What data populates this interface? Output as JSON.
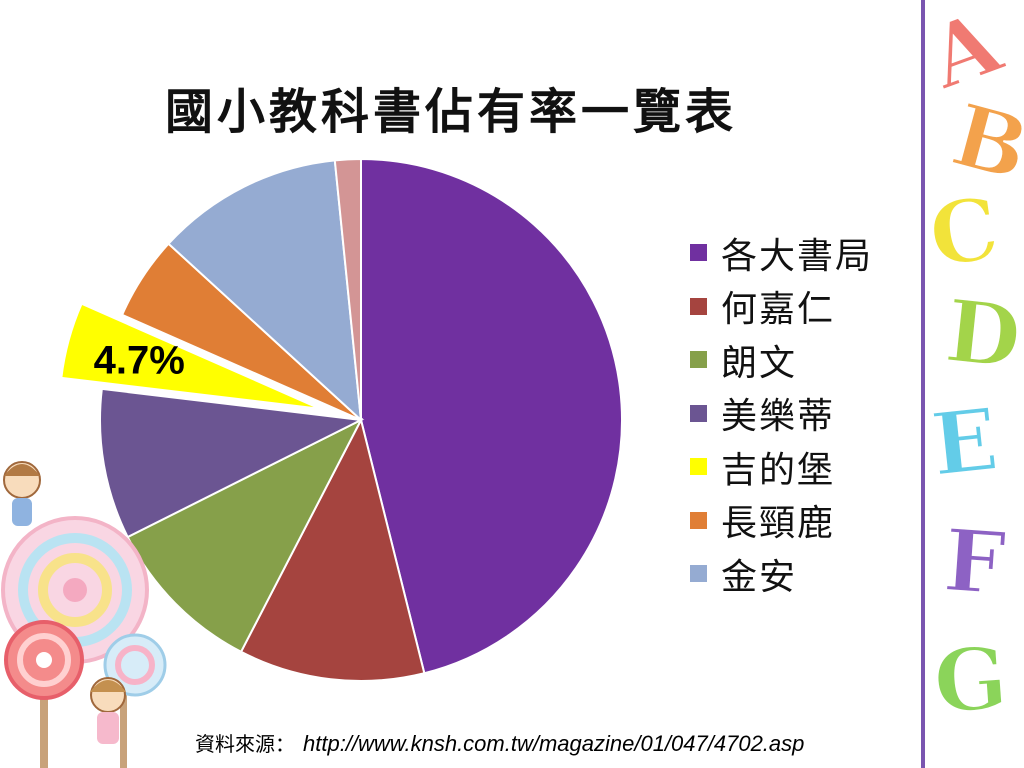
{
  "slide": {
    "title": "國小教科書佔有率一覽表",
    "source_label": "資料來源：",
    "source_url": "http://www.knsh.com.tw/magazine/01/047/4702.asp"
  },
  "chart_data": {
    "type": "pie",
    "title": "國小教科書佔有率一覽表",
    "legend_position": "right",
    "start_angle_degrees": 0,
    "direction": "clockwise",
    "slices": [
      {
        "label": "各大書局",
        "value": 46.1,
        "color": "#7030a0",
        "in_legend": true
      },
      {
        "label": "何嘉仁",
        "value": 11.5,
        "color": "#a5443f",
        "in_legend": true
      },
      {
        "label": "朗文",
        "value": 10.0,
        "color": "#86a04a",
        "in_legend": true
      },
      {
        "label": "美樂蒂",
        "value": 9.3,
        "color": "#6b5592",
        "in_legend": true
      },
      {
        "label": "吉的堡",
        "value": 4.7,
        "color": "#ffff00",
        "in_legend": true,
        "exploded": true,
        "data_label": "4.7%"
      },
      {
        "label": "長頸鹿",
        "value": 5.2,
        "color": "#e07e35",
        "in_legend": true
      },
      {
        "label": "金安",
        "value": 11.6,
        "color": "#95abd2",
        "in_legend": true
      },
      {
        "label": "",
        "value": 1.6,
        "color": "#d39595",
        "in_legend": false
      }
    ]
  },
  "decor": {
    "divider_color": "#7a55b0",
    "alphabet": [
      {
        "letter": "A",
        "color": "#f07a72"
      },
      {
        "letter": "B",
        "color": "#f3a24c"
      },
      {
        "letter": "C",
        "color": "#f2e33a"
      },
      {
        "letter": "D",
        "color": "#a3d44a"
      },
      {
        "letter": "E",
        "color": "#63cce8"
      },
      {
        "letter": "F",
        "color": "#8d62c4"
      },
      {
        "letter": "G",
        "color": "#8bd45a"
      }
    ]
  }
}
